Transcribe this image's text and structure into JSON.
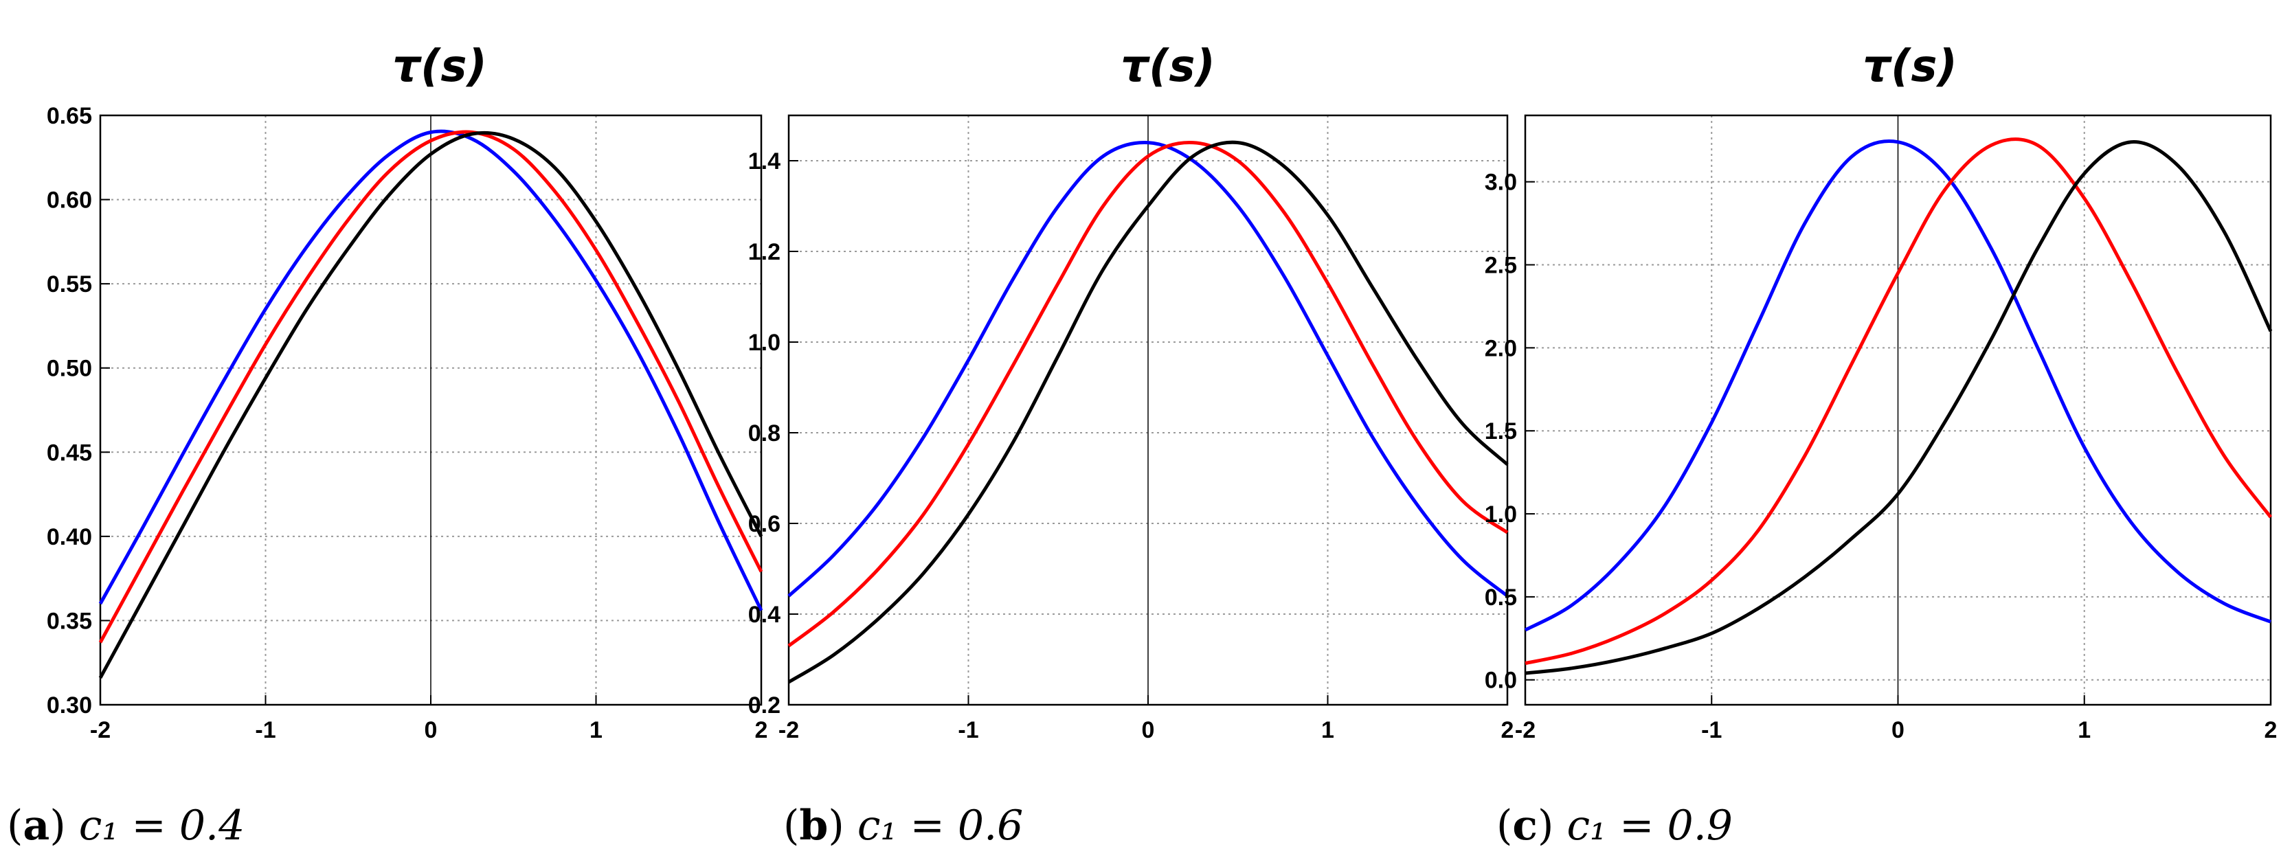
{
  "chart_data": [
    {
      "type": "line",
      "title": "τ(s)",
      "caption_letter": "a",
      "caption_expr": "c₁ = 0.4",
      "xlim": [
        -2,
        2
      ],
      "ylim": [
        0.3,
        0.65
      ],
      "x_ticks": [
        "-2",
        "-1",
        "0",
        "1",
        "2"
      ],
      "y_ticks": [
        "0.30",
        "0.35",
        "0.40",
        "0.45",
        "0.50",
        "0.55",
        "0.60",
        "0.65"
      ],
      "x": [
        -2,
        -1.75,
        -1.5,
        -1.25,
        -1,
        -0.75,
        -0.5,
        -0.25,
        0,
        0.25,
        0.5,
        0.75,
        1,
        1.25,
        1.5,
        1.75,
        2
      ],
      "series": [
        {
          "name": "blue",
          "color": "#0000ff",
          "values": [
            0.36,
            0.404,
            0.449,
            0.493,
            0.535,
            0.572,
            0.603,
            0.627,
            0.64,
            0.636,
            0.617,
            0.588,
            0.552,
            0.51,
            0.461,
            0.407,
            0.356
          ]
        },
        {
          "name": "red",
          "color": "#ff0000",
          "values": [
            0.337,
            0.382,
            0.427,
            0.471,
            0.514,
            0.553,
            0.588,
            0.617,
            0.635,
            0.64,
            0.63,
            0.605,
            0.57,
            0.527,
            0.48,
            0.428,
            0.379
          ]
        },
        {
          "name": "black",
          "color": "#000000",
          "values": [
            0.316,
            0.361,
            0.406,
            0.451,
            0.494,
            0.535,
            0.571,
            0.603,
            0.627,
            0.639,
            0.636,
            0.619,
            0.587,
            0.546,
            0.499,
            0.448,
            0.4
          ]
        }
      ]
    },
    {
      "type": "line",
      "title": "τ(s)",
      "caption_letter": "b",
      "caption_expr": "c₁ = 0.6",
      "xlim": [
        -2,
        2
      ],
      "ylim": [
        0.2,
        1.5
      ],
      "x_ticks": [
        "-2",
        "-1",
        "0",
        "1",
        "2"
      ],
      "y_ticks": [
        "0.2",
        "0.4",
        "0.6",
        "0.8",
        "1.0",
        "1.2",
        "1.4"
      ],
      "x": [
        -2,
        -1.75,
        -1.5,
        -1.25,
        -1,
        -0.75,
        -0.5,
        -0.25,
        0,
        0.25,
        0.5,
        0.75,
        1,
        1.25,
        1.5,
        1.75,
        2
      ],
      "series": [
        {
          "name": "blue",
          "color": "#0000ff",
          "values": [
            0.44,
            0.53,
            0.645,
            0.79,
            0.96,
            1.14,
            1.3,
            1.41,
            1.44,
            1.4,
            1.3,
            1.15,
            0.97,
            0.79,
            0.64,
            0.52,
            0.44
          ]
        },
        {
          "name": "red",
          "color": "#ff0000",
          "values": [
            0.33,
            0.405,
            0.5,
            0.62,
            0.775,
            0.95,
            1.13,
            1.3,
            1.41,
            1.44,
            1.4,
            1.29,
            1.13,
            0.95,
            0.78,
            0.65,
            0.58
          ]
        },
        {
          "name": "black",
          "color": "#000000",
          "values": [
            0.25,
            0.31,
            0.39,
            0.49,
            0.62,
            0.78,
            0.97,
            1.16,
            1.3,
            1.41,
            1.44,
            1.39,
            1.28,
            1.12,
            0.96,
            0.82,
            0.73
          ]
        }
      ]
    },
    {
      "type": "line",
      "title": "τ(s)",
      "caption_letter": "c",
      "caption_expr": "c₁ = 0.9",
      "xlim": [
        -2,
        2
      ],
      "ylim": [
        -0.15,
        3.4
      ],
      "x_ticks": [
        "-2",
        "-1",
        "0",
        "1",
        "2"
      ],
      "y_ticks": [
        "0.0",
        "0.5",
        "1.0",
        "1.5",
        "2.0",
        "2.5",
        "3.0"
      ],
      "x": [
        -2,
        -1.75,
        -1.5,
        -1.25,
        -1,
        -0.75,
        -0.5,
        -0.25,
        0,
        0.25,
        0.5,
        0.75,
        1,
        1.25,
        1.5,
        1.75,
        2
      ],
      "series": [
        {
          "name": "blue",
          "color": "#0000ff",
          "values": [
            0.3,
            0.45,
            0.7,
            1.05,
            1.55,
            2.15,
            2.75,
            3.15,
            3.24,
            3.05,
            2.6,
            2.0,
            1.4,
            0.95,
            0.65,
            0.46,
            0.35
          ]
        },
        {
          "name": "red",
          "color": "#ff0000",
          "values": [
            0.1,
            0.16,
            0.26,
            0.4,
            0.6,
            0.9,
            1.35,
            1.9,
            2.45,
            2.95,
            3.22,
            3.22,
            2.9,
            2.4,
            1.85,
            1.35,
            0.98
          ]
        },
        {
          "name": "black",
          "color": "#000000",
          "values": [
            0.04,
            0.07,
            0.12,
            0.19,
            0.28,
            0.43,
            0.62,
            0.85,
            1.12,
            1.55,
            2.05,
            2.6,
            3.05,
            3.24,
            3.1,
            2.7,
            2.1
          ]
        }
      ]
    }
  ]
}
